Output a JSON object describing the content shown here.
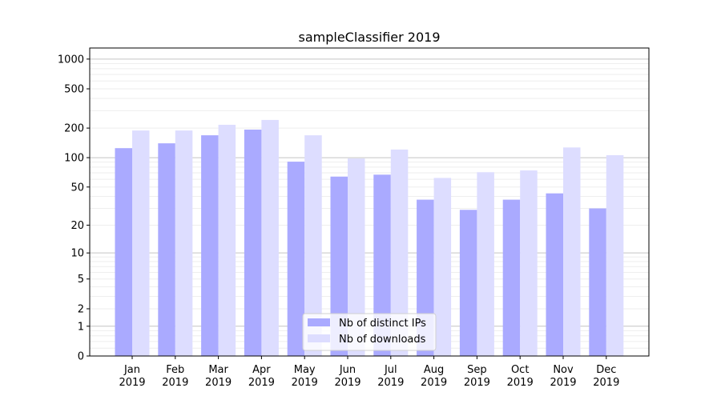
{
  "chart_data": {
    "type": "bar",
    "title": "sampleClassifier 2019",
    "xlabel": "",
    "ylabel": "",
    "yscale": "log(1+x) (symlog-like)",
    "ylim": [
      0,
      1200
    ],
    "yticks": [
      0,
      1,
      2,
      5,
      10,
      20,
      50,
      100,
      200,
      500,
      1000
    ],
    "grid": true,
    "legend_position": "lower center",
    "categories": [
      "Jan\n2019",
      "Feb\n2019",
      "Mar\n2019",
      "Apr\n2019",
      "May\n2019",
      "Jun\n2019",
      "Jul\n2019",
      "Aug\n2019",
      "Sep\n2019",
      "Oct\n2019",
      "Nov\n2019",
      "Dec\n2019"
    ],
    "series": [
      {
        "name": "Nb of distinct IPs",
        "color": "#aaaaff",
        "values": [
          125,
          140,
          169,
          193,
          91,
          64,
          67,
          37,
          29,
          37,
          43,
          30
        ]
      },
      {
        "name": "Nb of downloads",
        "color": "#ddddff",
        "values": [
          189,
          189,
          216,
          242,
          169,
          98,
          121,
          62,
          71,
          74,
          127,
          106
        ]
      }
    ]
  }
}
